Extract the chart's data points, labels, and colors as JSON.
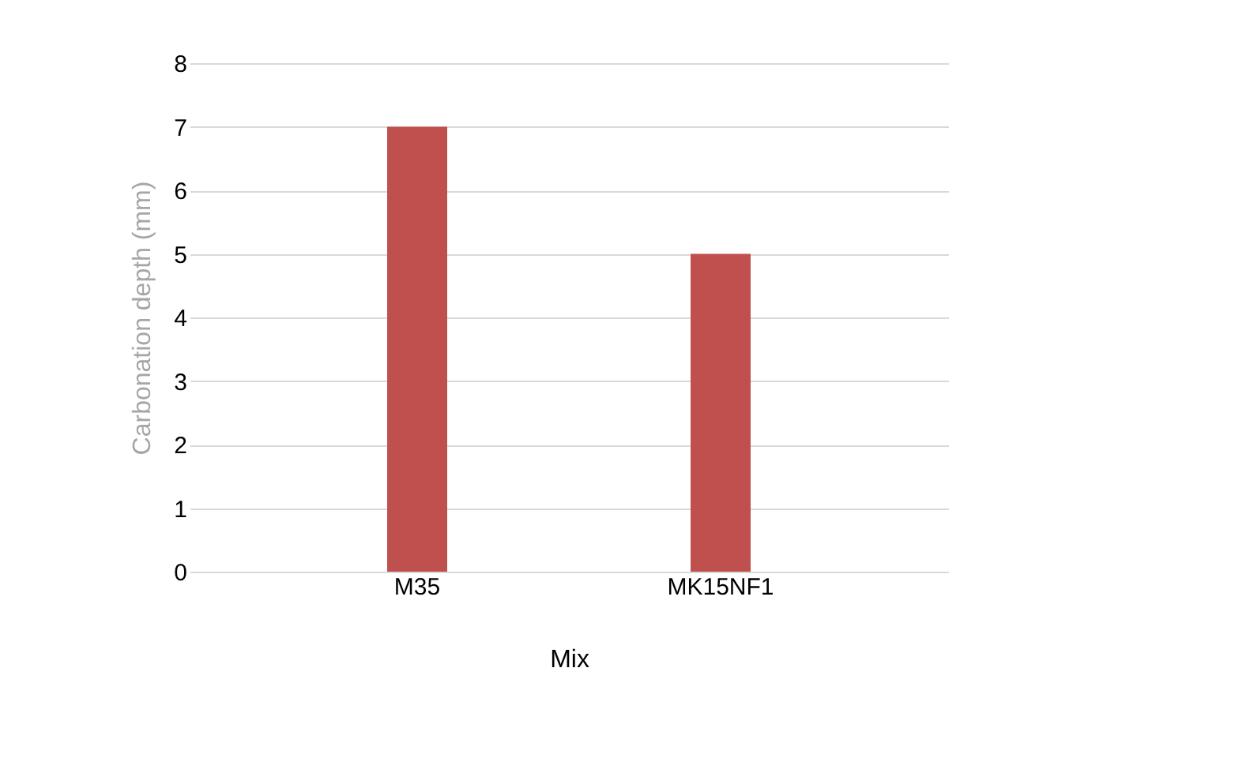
{
  "chart_data": {
    "type": "bar",
    "categories": [
      "M35",
      "MK15NF1"
    ],
    "values": [
      7,
      5
    ],
    "color": "#c0504d",
    "xlabel": "Mix",
    "ylabel": "Carbonation depth (mm)",
    "ylim": [
      0,
      8
    ],
    "yticks": [
      0,
      1,
      2,
      3,
      4,
      5,
      6,
      7,
      8
    ],
    "grid": "y"
  }
}
